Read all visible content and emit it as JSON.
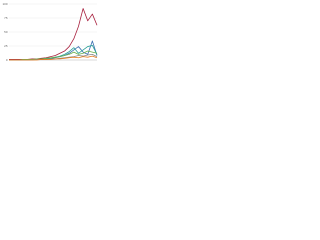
{
  "chart_data": {
    "type": "line",
    "categories": [
      null,
      null,
      null,
      null,
      null,
      null,
      null,
      null,
      null,
      null,
      null,
      null,
      null,
      null,
      null,
      null,
      null,
      null,
      null,
      null
    ],
    "series": [
      {
        "name": null,
        "color": "#a8203e",
        "values": [
          1,
          1,
          1,
          1,
          1,
          2,
          2,
          3,
          4,
          6,
          8,
          12,
          16,
          24,
          38,
          60,
          92,
          70,
          82,
          62
        ]
      },
      {
        "name": null,
        "color": "#3a6fb0",
        "values": [
          0,
          0,
          0,
          0,
          0,
          1,
          1,
          1,
          2,
          3,
          4,
          6,
          8,
          12,
          18,
          24,
          14,
          10,
          34,
          8
        ]
      },
      {
        "name": null,
        "color": "#2aa198",
        "values": [
          0,
          0,
          0,
          0,
          1,
          1,
          1,
          2,
          2,
          3,
          5,
          7,
          10,
          15,
          22,
          12,
          18,
          24,
          26,
          10
        ]
      },
      {
        "name": null,
        "color": "#6ab04c",
        "values": [
          0,
          0,
          0,
          1,
          1,
          1,
          2,
          2,
          3,
          4,
          5,
          6,
          8,
          10,
          14,
          10,
          12,
          16,
          14,
          12
        ]
      },
      {
        "name": null,
        "color": "#888888",
        "values": [
          0,
          0,
          0,
          0,
          0,
          0,
          1,
          1,
          1,
          2,
          2,
          3,
          4,
          5,
          6,
          8,
          7,
          9,
          10,
          6
        ]
      },
      {
        "name": null,
        "color": "#e67e22",
        "values": [
          0,
          0,
          0,
          0,
          0,
          0,
          0,
          1,
          1,
          1,
          2,
          2,
          3,
          4,
          5,
          4,
          6,
          5,
          7,
          4
        ]
      }
    ],
    "ylim": [
      0,
      100
    ],
    "yticks": [
      0,
      25,
      50,
      75,
      100
    ],
    "grid": true
  }
}
